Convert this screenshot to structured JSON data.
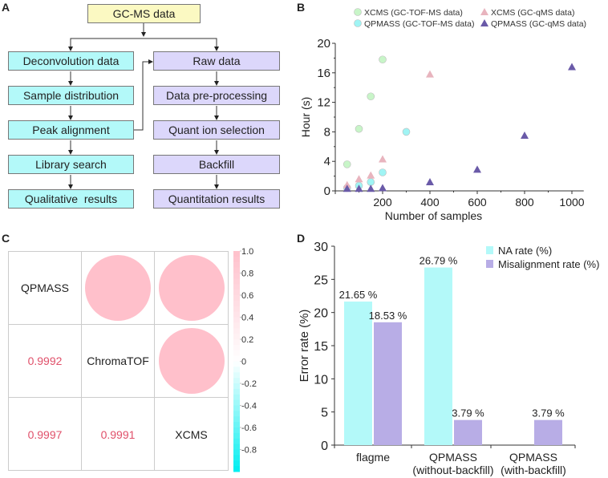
{
  "panels": {
    "a": "A",
    "b": "B",
    "c": "C",
    "d": "D"
  },
  "colors": {
    "cyan_box": "#b3f9f9",
    "purple_box": "#dcd7fb",
    "yellow_box": "#fbf9c2",
    "pink": "#ffc0cb",
    "corr_text": "#e0506a",
    "na_bar": "#b3f9f9",
    "mis_bar": "#b8ade6",
    "xcms_tof": "#c8f5c8",
    "qpmass_tof": "#a0f4f4",
    "xcms_qms": "#e8b4be",
    "qpmass_qms": "#6a5aa8"
  },
  "flowchart": {
    "root": "GC-MS data",
    "left": [
      "Deconvolution data",
      "Sample distribution",
      "Peak alignment",
      "Library search",
      "Qualitative  results"
    ],
    "right": [
      "Raw data",
      "Data pre-processing",
      "Quant ion selection",
      "Backfill",
      "Quantitation results"
    ]
  },
  "chart_data": [
    {
      "type": "scatter",
      "title": "",
      "xlabel": "Number of samples",
      "ylabel": "Hour (s)",
      "xlim": [
        0,
        1050
      ],
      "ylim": [
        0,
        20
      ],
      "xticks": [
        "200",
        "400",
        "600",
        "800",
        "1000"
      ],
      "xtick_values": [
        200,
        400,
        600,
        800,
        1000
      ],
      "yticks": [
        "0",
        "4",
        "8",
        "12",
        "16",
        "20"
      ],
      "ytick_values": [
        0,
        4,
        8,
        12,
        16,
        20
      ],
      "legend_position": "top",
      "series": [
        {
          "name": "XCMS (GC-TOF-MS data)",
          "marker": "circle",
          "color_key": "xcms_tof",
          "points": [
            [
              50,
              3.6
            ],
            [
              100,
              8.4
            ],
            [
              150,
              12.8
            ],
            [
              200,
              17.8
            ]
          ]
        },
        {
          "name": "QPMASS (GC-TOF-MS data)",
          "marker": "circle",
          "color_key": "qpmass_tof",
          "points": [
            [
              50,
              0.4
            ],
            [
              100,
              0.7
            ],
            [
              150,
              1.2
            ],
            [
              200,
              2.5
            ],
            [
              300,
              8.0
            ]
          ]
        },
        {
          "name": "XCMS (GC-qMS data)",
          "marker": "triangle",
          "color_key": "xcms_qms",
          "points": [
            [
              50,
              0.8
            ],
            [
              100,
              1.6
            ],
            [
              150,
              2.1
            ],
            [
              200,
              4.3
            ],
            [
              400,
              15.8
            ]
          ]
        },
        {
          "name": "QPMASS (GC-qMS data)",
          "marker": "triangle",
          "color_key": "qpmass_qms",
          "points": [
            [
              50,
              0.3
            ],
            [
              100,
              0.3
            ],
            [
              150,
              0.3
            ],
            [
              200,
              0.4
            ],
            [
              400,
              1.2
            ],
            [
              600,
              2.9
            ],
            [
              800,
              7.5
            ],
            [
              1000,
              16.8
            ]
          ]
        }
      ]
    },
    {
      "type": "heatmap",
      "title": "",
      "labels": [
        "QPMASS",
        "ChromaTOF",
        "XCMS"
      ],
      "lower": [
        {
          "row": 1,
          "col": 0,
          "value": "0.9992"
        },
        {
          "row": 2,
          "col": 0,
          "value": "0.9997"
        },
        {
          "row": 2,
          "col": 1,
          "value": "0.9991"
        }
      ],
      "upper_circles": [
        {
          "row": 0,
          "col": 1,
          "value": 0.9992
        },
        {
          "row": 0,
          "col": 2,
          "value": 0.9997
        },
        {
          "row": 1,
          "col": 2,
          "value": 0.9991
        }
      ],
      "colorbar": {
        "range": [
          -1.0,
          1.0
        ],
        "ticks": [
          "1.0",
          "0.8",
          "0.6",
          "0.4",
          "0.2",
          "0",
          "-0.2",
          "-0.4",
          "-0.6",
          "-0.8"
        ]
      }
    },
    {
      "type": "bar",
      "title": "",
      "xlabel": "",
      "ylabel": "Error rate (%)",
      "ylim": [
        0,
        30
      ],
      "yticks": [
        "0",
        "5",
        "10",
        "15",
        "20",
        "25",
        "30"
      ],
      "ytick_values": [
        0,
        5,
        10,
        15,
        20,
        25,
        30
      ],
      "categories": [
        "flagme",
        "QPMASS\n(without-backfill)",
        "QPMASS\n(with-backfill)"
      ],
      "category_lines": [
        [
          "flagme"
        ],
        [
          "QPMASS",
          "(without-backfill)"
        ],
        [
          "QPMASS",
          "(with-backfill)"
        ]
      ],
      "legend_position": "top-right",
      "series": [
        {
          "name": "NA rate (%)",
          "color_key": "na_bar",
          "values": [
            21.65,
            26.79,
            0
          ],
          "labels": [
            "21.65 %",
            "26.79 %",
            ""
          ]
        },
        {
          "name": "Misalignment rate (%)",
          "color_key": "mis_bar",
          "values": [
            18.53,
            3.79,
            3.79
          ],
          "labels": [
            "18.53 %",
            "3.79 %",
            "3.79 %"
          ]
        }
      ]
    }
  ]
}
